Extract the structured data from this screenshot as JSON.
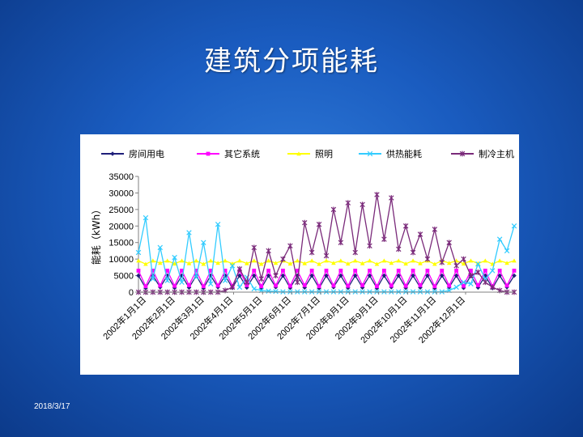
{
  "slide": {
    "title": "建筑分项能耗",
    "date": "2018/3/17"
  },
  "chart_data": {
    "type": "line",
    "ylabel": "能耗（kWh）",
    "ylim": [
      0,
      35000
    ],
    "yticks": [
      0,
      5000,
      10000,
      15000,
      20000,
      25000,
      30000,
      35000
    ],
    "x_range": [
      "2002年1月1日",
      "2002年12月31日"
    ],
    "x_tick_labels": [
      "2002年1月1日",
      "2002年2月1日",
      "2002年3月1日",
      "2002年4月1日",
      "2002年5月1日",
      "2002年6月1日",
      "2002年7月1日",
      "2002年8月1日",
      "2002年9月1日",
      "2002年10月1日",
      "2002年11月1日",
      "2002年12月1日"
    ],
    "grid": false,
    "legend_position": "top",
    "sampling": "weekly approximation of daily data",
    "x_weeks": [
      "2002-01-01",
      "2002-01-08",
      "2002-01-15",
      "2002-01-22",
      "2002-01-29",
      "2002-02-05",
      "2002-02-12",
      "2002-02-19",
      "2002-02-26",
      "2002-03-05",
      "2002-03-12",
      "2002-03-19",
      "2002-03-26",
      "2002-04-02",
      "2002-04-09",
      "2002-04-16",
      "2002-04-23",
      "2002-04-30",
      "2002-05-07",
      "2002-05-14",
      "2002-05-21",
      "2002-05-28",
      "2002-06-04",
      "2002-06-11",
      "2002-06-18",
      "2002-06-25",
      "2002-07-02",
      "2002-07-09",
      "2002-07-16",
      "2002-07-23",
      "2002-07-30",
      "2002-08-06",
      "2002-08-13",
      "2002-08-20",
      "2002-08-27",
      "2002-09-03",
      "2002-09-10",
      "2002-09-17",
      "2002-09-24",
      "2002-10-01",
      "2002-10-08",
      "2002-10-15",
      "2002-10-22",
      "2002-10-29",
      "2002-11-05",
      "2002-11-12",
      "2002-11-19",
      "2002-11-26",
      "2002-12-03",
      "2002-12-10",
      "2002-12-17",
      "2002-12-24",
      "2002-12-31"
    ],
    "series": [
      {
        "name": "房间用电",
        "color": "#1f1f7a",
        "marker": "diamond",
        "values": [
          5000,
          1200,
          5000,
          1500,
          5000,
          1300,
          5000,
          1400,
          5000,
          1200,
          5000,
          1500,
          5000,
          1300,
          5000,
          1400,
          5000,
          1200,
          5000,
          1500,
          5000,
          1300,
          5000,
          1400,
          5000,
          1200,
          5000,
          1500,
          5000,
          1300,
          5000,
          1400,
          5000,
          1200,
          5000,
          1500,
          5000,
          1300,
          5000,
          1400,
          5000,
          1200,
          5000,
          1500,
          5000,
          1300,
          5000,
          1400,
          5000,
          1200,
          5000,
          1500,
          5000
        ]
      },
      {
        "name": "其它系统",
        "color": "#ff00ff",
        "marker": "square",
        "values": [
          6500,
          1800,
          6500,
          2000,
          6500,
          1900,
          6500,
          2100,
          6500,
          1800,
          6500,
          2000,
          6500,
          1900,
          6500,
          2100,
          6500,
          1800,
          6500,
          2000,
          6500,
          1900,
          6500,
          2100,
          6500,
          1800,
          6500,
          2000,
          6500,
          1900,
          6500,
          2100,
          6500,
          1800,
          6500,
          2000,
          6500,
          1900,
          6500,
          2100,
          6500,
          1800,
          6500,
          2000,
          6500,
          1900,
          6500,
          2100,
          6500,
          1800,
          6500,
          2000,
          6500
        ]
      },
      {
        "name": "照明",
        "color": "#ffff00",
        "marker": "triangle",
        "values": [
          9500,
          8500,
          9500,
          8800,
          9500,
          8600,
          9500,
          8700,
          9500,
          8500,
          9500,
          8800,
          9500,
          8600,
          9500,
          8700,
          9500,
          8500,
          9500,
          8800,
          9500,
          8600,
          9500,
          8700,
          9500,
          8500,
          9500,
          8800,
          9500,
          8600,
          9500,
          8700,
          9500,
          8500,
          9500,
          8800,
          9500,
          8600,
          9500,
          8700,
          9500,
          8500,
          9500,
          8800,
          9500,
          8600,
          9500,
          8700,
          9500,
          8500,
          9500,
          8800,
          9500
        ]
      },
      {
        "name": "供热能耗",
        "color": "#33ccff",
        "marker": "x",
        "values": [
          12000,
          22500,
          4000,
          13500,
          3500,
          10500,
          3000,
          18000,
          4500,
          15000,
          2500,
          20500,
          3500,
          8000,
          1500,
          4500,
          1000,
          500,
          300,
          200,
          100,
          100,
          100,
          100,
          100,
          100,
          100,
          100,
          100,
          100,
          100,
          100,
          100,
          100,
          100,
          100,
          100,
          100,
          100,
          100,
          100,
          100,
          100,
          500,
          1500,
          3000,
          2500,
          8500,
          4000,
          6500,
          16000,
          12500,
          20000
        ]
      },
      {
        "name": "制冷主机",
        "color": "#7a2a7a",
        "marker": "asterisk",
        "values": [
          0,
          0,
          0,
          0,
          0,
          0,
          0,
          0,
          0,
          0,
          0,
          0,
          500,
          1500,
          7000,
          3000,
          13500,
          4000,
          12500,
          5000,
          10000,
          14000,
          3000,
          21000,
          12000,
          20500,
          11000,
          25000,
          15000,
          27000,
          12000,
          26500,
          14000,
          29500,
          16000,
          28500,
          13000,
          20000,
          12000,
          17500,
          10000,
          19000,
          9000,
          15000,
          8000,
          10000,
          5000,
          6000,
          3000,
          1500,
          500,
          0,
          0
        ]
      }
    ]
  }
}
